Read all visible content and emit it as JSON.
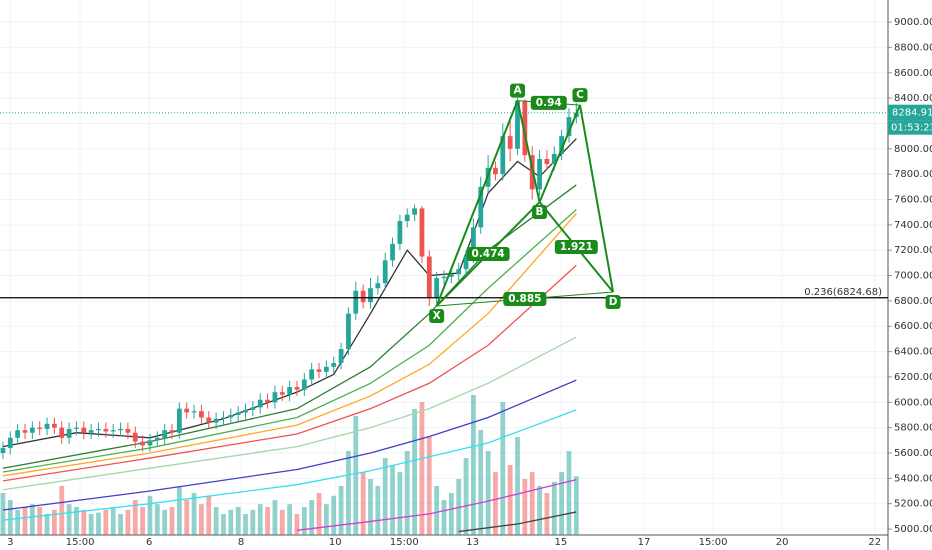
{
  "chart_data": {
    "type": "candlestick",
    "open": [
      5600,
      5640,
      5720,
      5780,
      5760,
      5800,
      5790,
      5830,
      5800,
      5720,
      5790,
      5800,
      5760,
      5780,
      5790,
      5770,
      5780,
      5790,
      5760,
      5690,
      5660,
      5700,
      5720,
      5780,
      5760,
      5950,
      5920,
      5930,
      5880,
      5840,
      5870,
      5880,
      5900,
      5920,
      5940,
      5960,
      6020,
      6000,
      6080,
      6060,
      6120,
      6100,
      6180,
      6260,
      6240,
      6280,
      6310,
      6420,
      6700,
      6880,
      6790,
      6900,
      6940,
      7120,
      7250,
      7430,
      7480,
      7530,
      7150,
      6820,
      6980,
      6990,
      7010,
      7050,
      7150,
      7380,
      7700,
      7850,
      7800,
      8100,
      8000,
      8380,
      7950,
      7680,
      7920,
      7880,
      7960,
      8100,
      8250
    ],
    "high": [
      5690,
      5770,
      5830,
      5830,
      5850,
      5850,
      5880,
      5880,
      5850,
      5840,
      5850,
      5850,
      5830,
      5840,
      5840,
      5830,
      5840,
      5840,
      5810,
      5740,
      5750,
      5770,
      5830,
      5830,
      6000,
      6000,
      5980,
      5980,
      5930,
      5920,
      5930,
      5950,
      5970,
      5990,
      6010,
      6070,
      6070,
      6130,
      6130,
      6170,
      6170,
      6230,
      6310,
      6310,
      6330,
      6360,
      6470,
      6750,
      6950,
      6930,
      6980,
      7000,
      7180,
      7300,
      7480,
      7530,
      7560,
      7550,
      7200,
      7030,
      7040,
      7060,
      7100,
      7200,
      7450,
      7780,
      7950,
      7900,
      8200,
      8250,
      8400,
      8390,
      8020,
      7990,
      7990,
      8020,
      8150,
      8320,
      8360
    ],
    "low": [
      5550,
      5590,
      5670,
      5710,
      5710,
      5740,
      5740,
      5750,
      5670,
      5670,
      5740,
      5710,
      5710,
      5730,
      5720,
      5720,
      5730,
      5710,
      5640,
      5610,
      5610,
      5650,
      5670,
      5710,
      5710,
      5870,
      5870,
      5830,
      5790,
      5790,
      5820,
      5830,
      5850,
      5870,
      5890,
      5910,
      5950,
      5950,
      6010,
      6010,
      6050,
      6050,
      6130,
      6190,
      6190,
      6230,
      6260,
      6370,
      6650,
      6740,
      6740,
      6850,
      6890,
      7070,
      7200,
      7380,
      7430,
      7100,
      6760,
      6780,
      6930,
      6940,
      6960,
      7000,
      7100,
      7330,
      7650,
      7750,
      7750,
      7900,
      7950,
      7900,
      7600,
      7630,
      7830,
      7830,
      7910,
      8050,
      8200
    ],
    "close": [
      5640,
      5720,
      5780,
      5760,
      5800,
      5790,
      5830,
      5800,
      5720,
      5790,
      5800,
      5760,
      5780,
      5790,
      5770,
      5780,
      5790,
      5760,
      5690,
      5660,
      5700,
      5720,
      5780,
      5760,
      5950,
      5920,
      5930,
      5880,
      5840,
      5870,
      5880,
      5900,
      5920,
      5940,
      5960,
      6020,
      6000,
      6080,
      6060,
      6120,
      6100,
      6180,
      6260,
      6240,
      6280,
      6310,
      6420,
      6700,
      6880,
      6790,
      6900,
      6940,
      7120,
      7250,
      7430,
      7480,
      7530,
      7150,
      6820,
      6980,
      6990,
      7010,
      7050,
      7150,
      7380,
      7700,
      7850,
      7800,
      8100,
      8000,
      8380,
      7950,
      7680,
      7920,
      7880,
      7960,
      8100,
      8250,
      8284.91
    ],
    "volume": [
      30,
      25,
      18,
      20,
      22,
      20,
      15,
      18,
      35,
      22,
      20,
      18,
      15,
      16,
      18,
      20,
      15,
      18,
      25,
      20,
      28,
      22,
      18,
      20,
      35,
      25,
      30,
      22,
      28,
      20,
      15,
      18,
      20,
      15,
      18,
      22,
      20,
      25,
      18,
      22,
      15,
      20,
      25,
      30,
      22,
      28,
      35,
      60,
      85,
      45,
      40,
      35,
      55,
      50,
      45,
      60,
      90,
      95,
      70,
      35,
      25,
      30,
      40,
      55,
      100,
      75,
      60,
      45,
      95,
      50,
      70,
      40,
      45,
      35,
      30,
      38,
      45,
      60,
      42
    ],
    "up_color": "#26a69a",
    "down_color": "#ef5350",
    "moving_averages": [
      {
        "color": "#333333",
        "x": [
          0,
          10,
          20,
          30,
          40,
          45,
          50,
          55,
          58,
          62,
          66,
          70,
          73,
          78
        ],
        "values": [
          5650,
          5760,
          5720,
          5870,
          6080,
          6220,
          6700,
          7200,
          7000,
          7020,
          7650,
          7900,
          7780,
          8080
        ]
      },
      {
        "color": "#2e7d32",
        "x": [
          0,
          20,
          40,
          50,
          58,
          66,
          78
        ],
        "values": [
          5480,
          5690,
          5950,
          6280,
          6700,
          7200,
          7715
        ]
      },
      {
        "color": "#4caf50",
        "x": [
          0,
          20,
          40,
          50,
          58,
          66,
          78
        ],
        "values": [
          5450,
          5640,
          5880,
          6150,
          6450,
          6900,
          7520
        ]
      },
      {
        "color": "#ffa726",
        "x": [
          0,
          20,
          40,
          50,
          58,
          66,
          78
        ],
        "values": [
          5420,
          5600,
          5820,
          6050,
          6300,
          6700,
          7490
        ]
      },
      {
        "color": "#ef5350",
        "x": [
          0,
          20,
          40,
          50,
          58,
          66,
          78
        ],
        "values": [
          5380,
          5560,
          5750,
          5950,
          6150,
          6450,
          7080
        ]
      },
      {
        "color": "#a5d6a7",
        "x": [
          0,
          20,
          40,
          50,
          58,
          66,
          78
        ],
        "values": [
          5310,
          5480,
          5650,
          5800,
          5950,
          6150,
          6515
        ]
      },
      {
        "color": "#3f3fc8",
        "x": [
          0,
          20,
          40,
          50,
          58,
          66,
          78
        ],
        "values": [
          5150,
          5300,
          5470,
          5600,
          5730,
          5880,
          6175
        ]
      },
      {
        "color": "#33e0f0",
        "x": [
          0,
          20,
          40,
          50,
          58,
          66,
          78
        ],
        "values": [
          5070,
          5200,
          5350,
          5460,
          5570,
          5680,
          5940
        ]
      },
      {
        "color": "#d040d0",
        "x": [
          40,
          50,
          58,
          66,
          78
        ],
        "values": [
          4990,
          5060,
          5120,
          5220,
          5390
        ]
      },
      {
        "color": "#444444",
        "x": [
          62,
          70,
          78
        ],
        "values": [
          4980,
          5040,
          5135
        ]
      }
    ],
    "pattern": {
      "color": "#1a8a1a",
      "points": [
        {
          "label": "X",
          "x": 59,
          "value": 6760
        },
        {
          "label": "A",
          "x": 70,
          "value": 8380
        },
        {
          "label": "B",
          "x": 73,
          "value": 7580
        },
        {
          "label": "C",
          "x": 78.5,
          "value": 8345
        },
        {
          "label": "D",
          "x": 83,
          "value": 6870
        }
      ],
      "ratios": [
        "0.474",
        "0.94",
        "1.921",
        "0.885"
      ]
    },
    "level": {
      "value": 6824.68,
      "label": "0.236(6824.68)"
    },
    "last_price": 8284.91,
    "countdown": "01:53:23",
    "xlim": [
      -0.4,
      120.4
    ],
    "ylim": [
      4953,
      9174
    ],
    "yticks": [
      {
        "value": 5000,
        "label": "5000.00"
      },
      {
        "value": 5200,
        "label": "5200.00"
      },
      {
        "value": 5400,
        "label": "5400.00"
      },
      {
        "value": 5600,
        "label": "5600.00"
      },
      {
        "value": 5800,
        "label": "5800.00"
      },
      {
        "value": 6000,
        "label": "6000.00"
      },
      {
        "value": 6200,
        "label": "6200.00"
      },
      {
        "value": 6400,
        "label": "6400.00"
      },
      {
        "value": 6600,
        "label": "6600.00"
      },
      {
        "value": 6800,
        "label": "6800.00"
      },
      {
        "value": 7000,
        "label": "7000.00"
      },
      {
        "value": 7200,
        "label": "7200.00"
      },
      {
        "value": 7400,
        "label": "7400.00"
      },
      {
        "value": 7600,
        "label": "7600.00"
      },
      {
        "value": 7800,
        "label": "7800.00"
      },
      {
        "value": 8000,
        "label": "8000.00"
      },
      {
        "value": 8200,
        "label": "8200.00"
      },
      {
        "value": 8400,
        "label": "8400.00"
      },
      {
        "value": 8600,
        "label": "8600.00"
      },
      {
        "value": 8800,
        "label": "8800.00"
      },
      {
        "value": 9000,
        "label": "9000.00"
      }
    ],
    "xticks": [
      {
        "value": 1,
        "label": "3"
      },
      {
        "value": 10.5,
        "label": "15:00"
      },
      {
        "value": 19.9,
        "label": "6"
      },
      {
        "value": 32.4,
        "label": "8"
      },
      {
        "value": 45.2,
        "label": "10"
      },
      {
        "value": 54.6,
        "label": "15:00"
      },
      {
        "value": 63.9,
        "label": "13"
      },
      {
        "value": 75.9,
        "label": "15"
      },
      {
        "value": 87.2,
        "label": "17"
      },
      {
        "value": 96.6,
        "label": "15:00"
      },
      {
        "value": 106,
        "label": "20"
      },
      {
        "value": 118.6,
        "label": "22"
      }
    ],
    "grid": true
  }
}
